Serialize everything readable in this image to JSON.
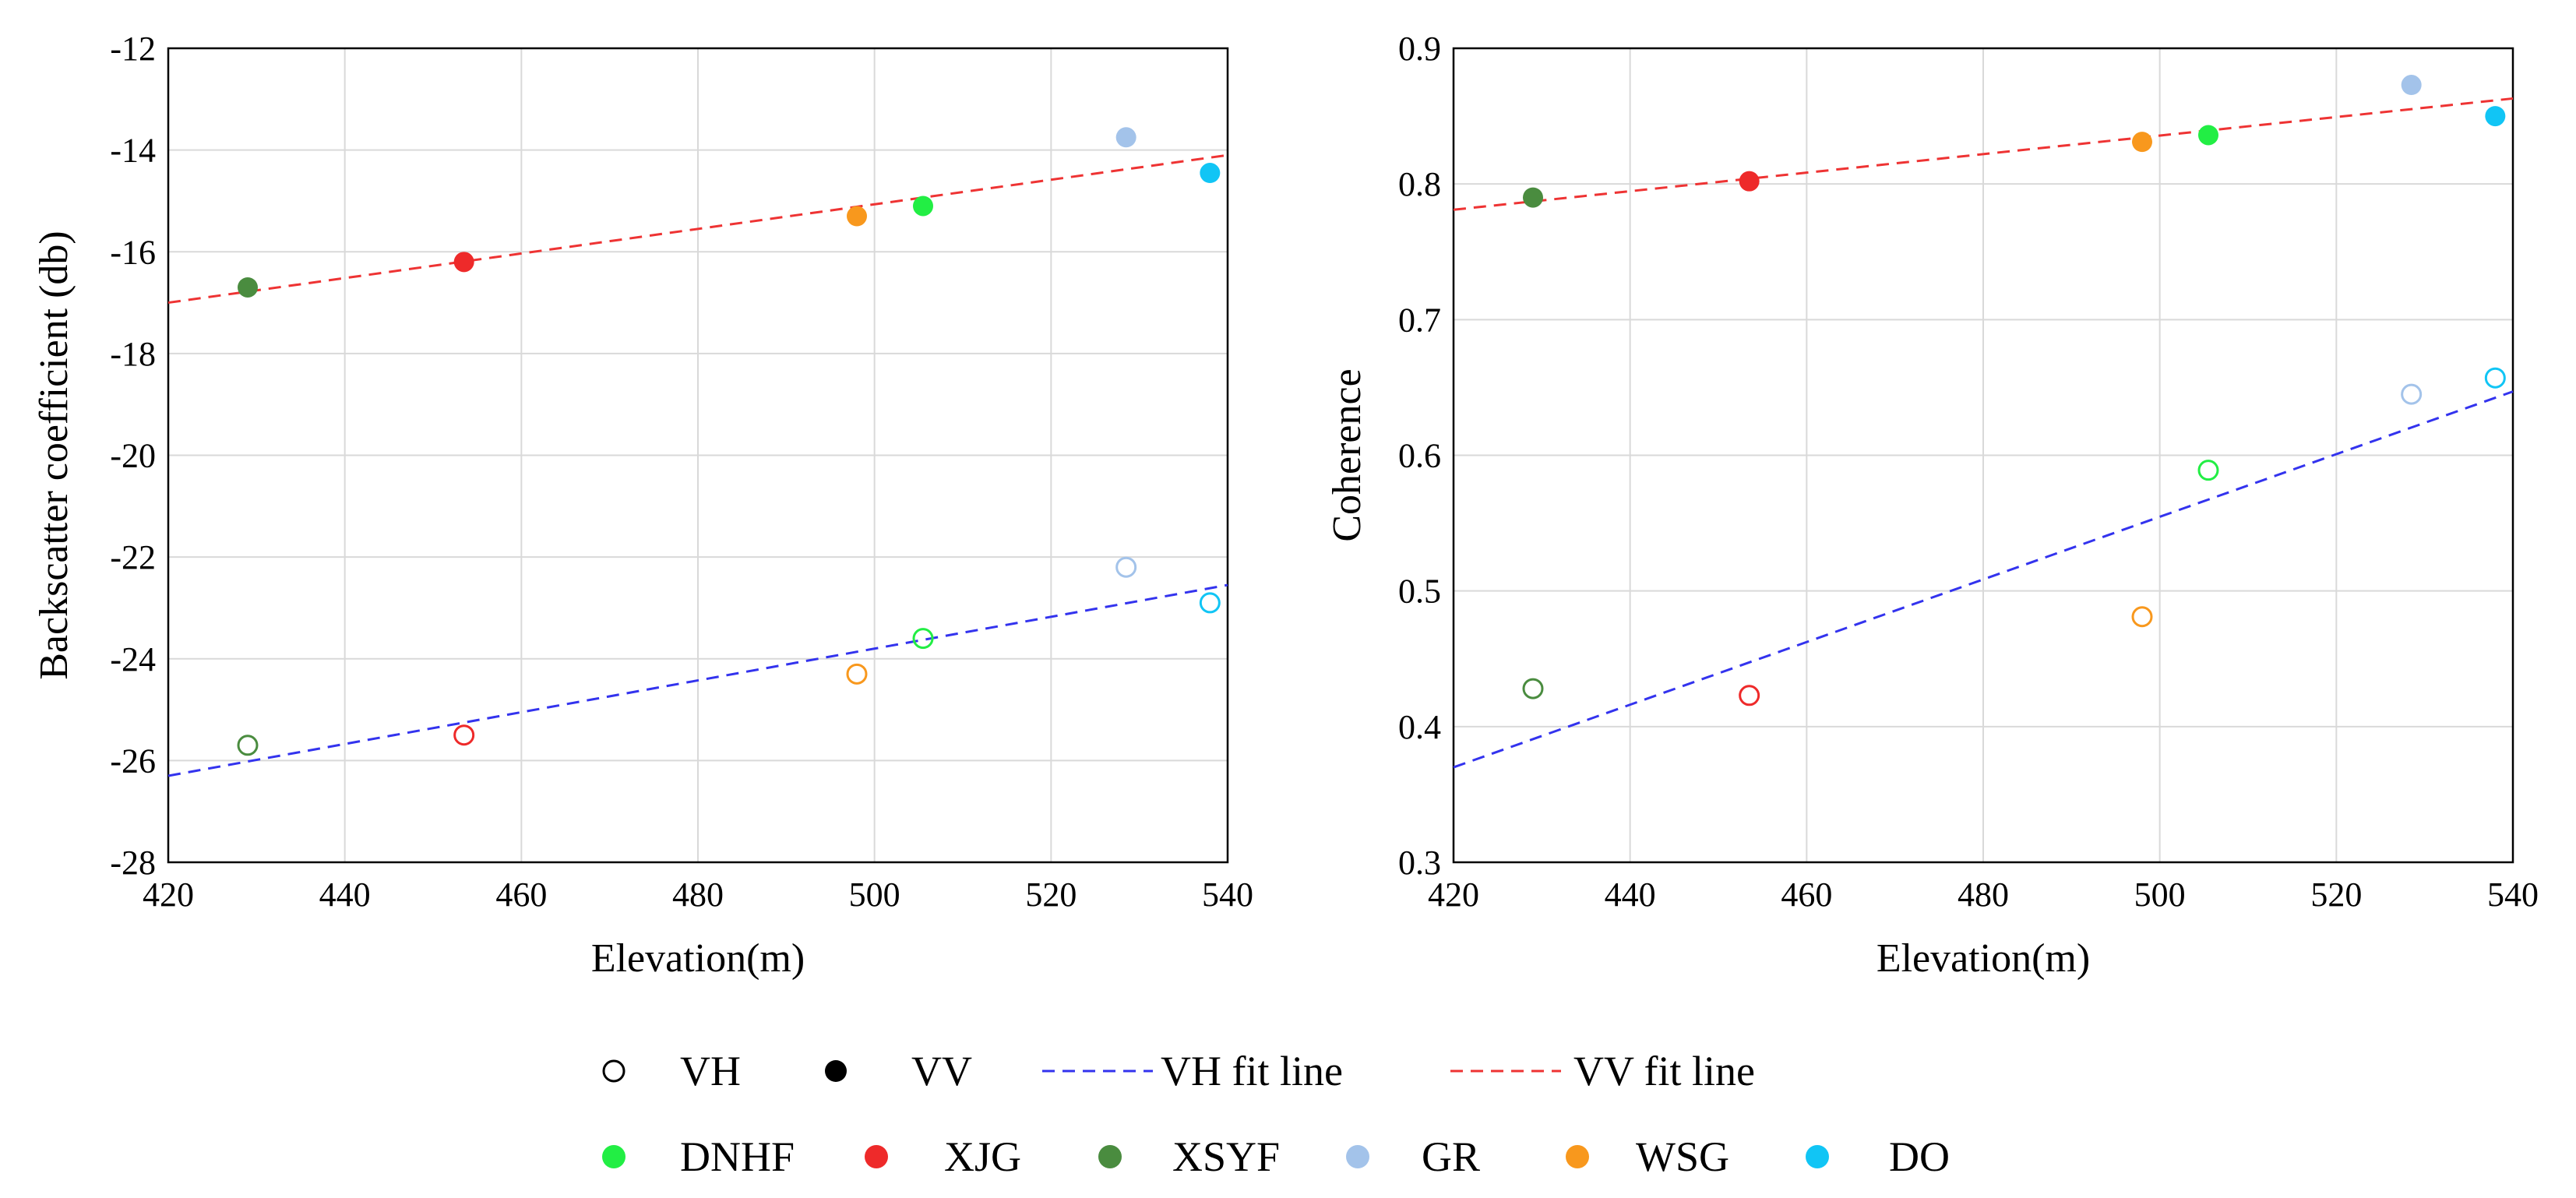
{
  "chart_data": [
    {
      "type": "scatter",
      "xlabel": "Elevation(m)",
      "ylabel": "Backscatter coefficient (db)",
      "xlim": [
        420,
        540
      ],
      "ylim": [
        -28,
        -12
      ],
      "xticks": [
        420,
        440,
        460,
        480,
        500,
        520,
        540
      ],
      "yticks": [
        -28,
        -26,
        -24,
        -22,
        -20,
        -18,
        -16,
        -14,
        -12
      ],
      "grid": true,
      "series": [
        {
          "name": "VH",
          "marker": "open",
          "points": [
            {
              "site": "XSYF",
              "x": 429,
              "y": -25.7
            },
            {
              "site": "XJG",
              "x": 453.5,
              "y": -25.5
            },
            {
              "site": "WSG",
              "x": 498,
              "y": -24.3
            },
            {
              "site": "DNHF",
              "x": 505.5,
              "y": -23.6
            },
            {
              "site": "GR",
              "x": 528.5,
              "y": -22.2
            },
            {
              "site": "DO",
              "x": 538,
              "y": -22.9
            }
          ]
        },
        {
          "name": "VV",
          "marker": "filled",
          "points": [
            {
              "site": "XSYF",
              "x": 429,
              "y": -16.7
            },
            {
              "site": "XJG",
              "x": 453.5,
              "y": -16.2
            },
            {
              "site": "WSG",
              "x": 498,
              "y": -15.3
            },
            {
              "site": "DNHF",
              "x": 505.5,
              "y": -15.1
            },
            {
              "site": "GR",
              "x": 528.5,
              "y": -13.75
            },
            {
              "site": "DO",
              "x": 538,
              "y": -14.45
            }
          ]
        }
      ],
      "fit_lines": [
        {
          "name": "VH fit line",
          "x": [
            420,
            540
          ],
          "y": [
            -26.3,
            -22.55
          ],
          "color": "#3333ee"
        },
        {
          "name": "VV fit line",
          "x": [
            420,
            540
          ],
          "y": [
            -17.0,
            -14.1
          ],
          "color": "#ee3333"
        }
      ]
    },
    {
      "type": "scatter",
      "xlabel": "Elevation(m)",
      "ylabel": "Coherence",
      "xlim": [
        420,
        540
      ],
      "ylim": [
        0.3,
        0.9
      ],
      "xticks": [
        420,
        440,
        460,
        480,
        500,
        520,
        540
      ],
      "yticks": [
        0.3,
        0.4,
        0.5,
        0.6,
        0.7,
        0.8,
        0.9
      ],
      "grid": true,
      "series": [
        {
          "name": "VH",
          "marker": "open",
          "points": [
            {
              "site": "XSYF",
              "x": 429,
              "y": 0.428
            },
            {
              "site": "XJG",
              "x": 453.5,
              "y": 0.423
            },
            {
              "site": "WSG",
              "x": 498,
              "y": 0.481
            },
            {
              "site": "DNHF",
              "x": 505.5,
              "y": 0.589
            },
            {
              "site": "GR",
              "x": 528.5,
              "y": 0.645
            },
            {
              "site": "DO",
              "x": 538,
              "y": 0.657
            }
          ]
        },
        {
          "name": "VV",
          "marker": "filled",
          "points": [
            {
              "site": "XSYF",
              "x": 429,
              "y": 0.79
            },
            {
              "site": "XJG",
              "x": 453.5,
              "y": 0.802
            },
            {
              "site": "WSG",
              "x": 498,
              "y": 0.831
            },
            {
              "site": "DNHF",
              "x": 505.5,
              "y": 0.836
            },
            {
              "site": "GR",
              "x": 528.5,
              "y": 0.873
            },
            {
              "site": "DO",
              "x": 538,
              "y": 0.85
            }
          ]
        }
      ],
      "fit_lines": [
        {
          "name": "VH fit line",
          "x": [
            420,
            540
          ],
          "y": [
            0.37,
            0.647
          ],
          "color": "#3333ee"
        },
        {
          "name": "VV fit line",
          "x": [
            420,
            540
          ],
          "y": [
            0.781,
            0.863
          ],
          "color": "#ee3333"
        }
      ]
    }
  ],
  "site_colors": {
    "DNHF": "#22ee44",
    "XJG": "#ee2a2a",
    "XSYF": "#4a8c3f",
    "GR": "#a3c3ea",
    "WSG": "#f8981d",
    "DO": "#11c5f5"
  },
  "legend": {
    "row1": [
      {
        "label": "VH",
        "kind": "open"
      },
      {
        "label": "VV",
        "kind": "filled"
      },
      {
        "label": "VH   fit line",
        "kind": "line",
        "color": "#3333ee"
      },
      {
        "label": "VV   fit line",
        "kind": "line",
        "color": "#ee3333"
      }
    ],
    "row2": [
      {
        "label": "DNHF",
        "site": "DNHF"
      },
      {
        "label": "XJG",
        "site": "XJG"
      },
      {
        "label": "XSYF",
        "site": "XSYF"
      },
      {
        "label": "GR",
        "site": "GR"
      },
      {
        "label": "WSG",
        "site": "WSG"
      },
      {
        "label": "DO",
        "site": "DO"
      }
    ]
  }
}
